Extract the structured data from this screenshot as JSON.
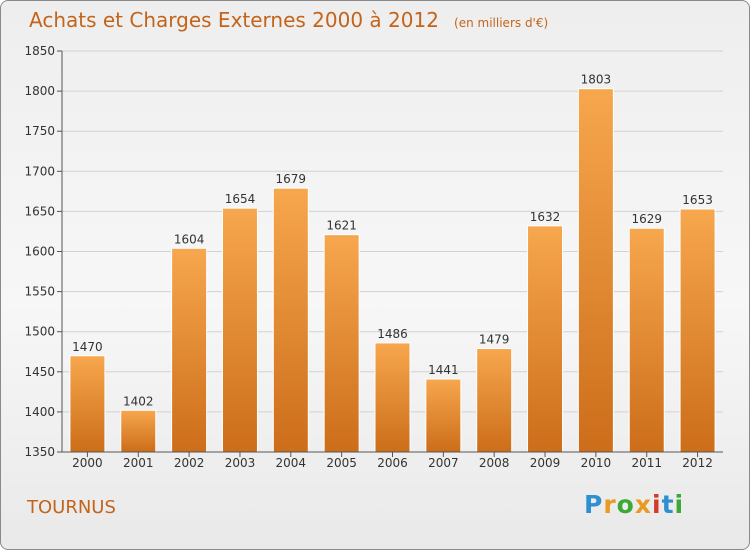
{
  "title": "Achats et Charges Externes 2000 à 2012",
  "subtitle": "(en milliers d'€)",
  "city": "TOURNUS",
  "brand": {
    "text": "Proxiti",
    "colors": [
      "#2e8fd1",
      "#e89a22",
      "#3aa935",
      "#e89a22",
      "#d43a2a",
      "#2e8fd1",
      "#3aa935"
    ]
  },
  "colors": {
    "accent": "#c4641a",
    "bar_top": "#f7a74e",
    "bar_bottom": "#cc6d1a",
    "grid": "#d2d2d2"
  },
  "chart_data": {
    "type": "bar",
    "categories": [
      "2000",
      "2001",
      "2002",
      "2003",
      "2004",
      "2005",
      "2006",
      "2007",
      "2008",
      "2009",
      "2010",
      "2011",
      "2012"
    ],
    "values": [
      1470,
      1402,
      1604,
      1654,
      1679,
      1621,
      1486,
      1441,
      1479,
      1632,
      1803,
      1629,
      1653
    ],
    "ylim": [
      1350,
      1850
    ],
    "yticks": [
      1350,
      1400,
      1450,
      1500,
      1550,
      1600,
      1650,
      1700,
      1750,
      1800,
      1850
    ],
    "grid": true,
    "data_labels": true
  }
}
